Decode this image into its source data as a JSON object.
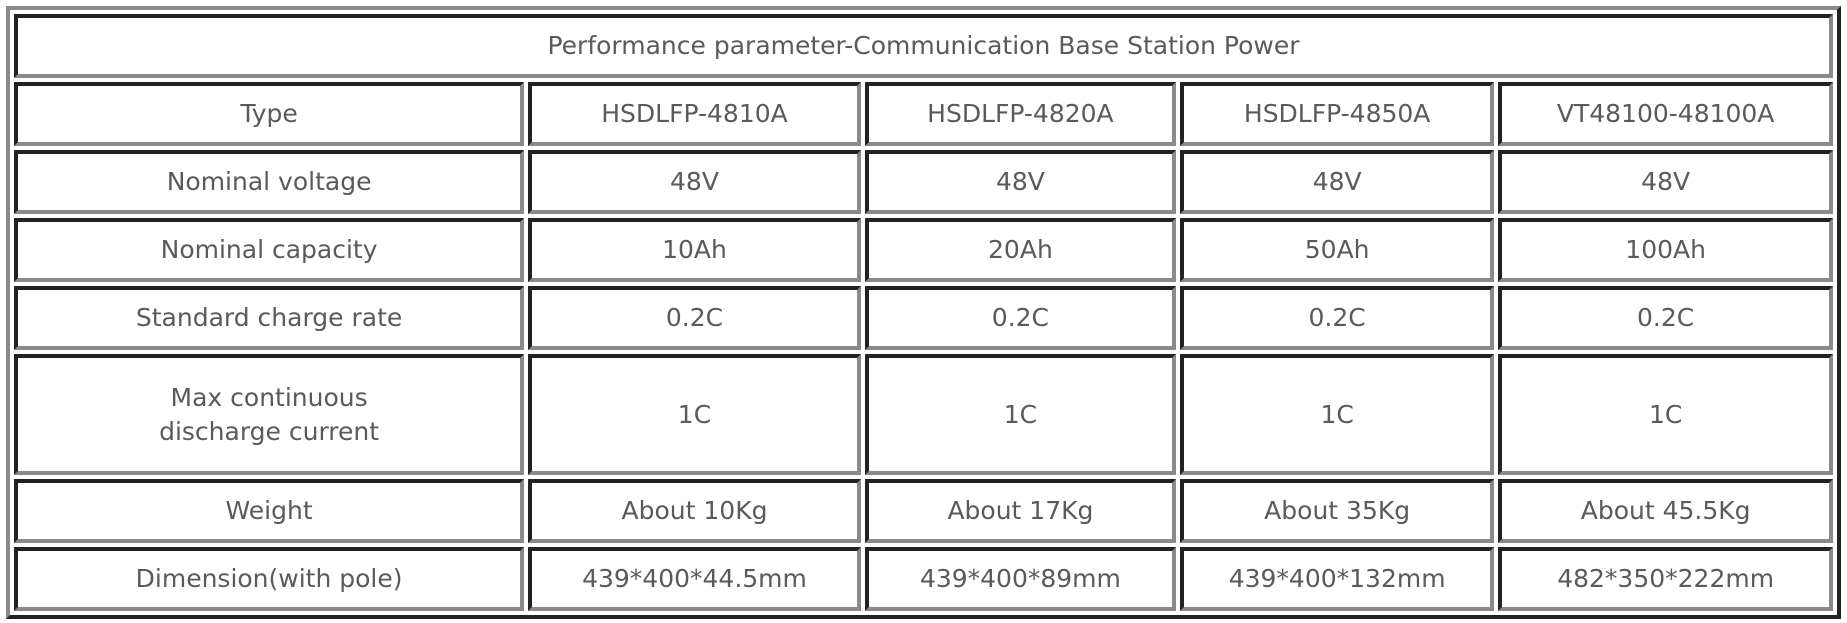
{
  "title": "Performance parameter-Communication Base Station Power",
  "columns": [
    "Type",
    "HSDLFP-4810A",
    "HSDLFP-4820A",
    "HSDLFP-4850A",
    "VT48100-48100A"
  ],
  "rows": [
    {
      "label": "Nominal voltage",
      "values": [
        "48V",
        "48V",
        "48V",
        "48V"
      ]
    },
    {
      "label": "Nominal capacity",
      "values": [
        "10Ah",
        "20Ah",
        "50Ah",
        "100Ah"
      ]
    },
    {
      "label": "Standard charge rate",
      "values": [
        "0.2C",
        "0.2C",
        "0.2C",
        "0.2C"
      ]
    },
    {
      "label": "Max continuous discharge current",
      "values": [
        "1C",
        "1C",
        "1C",
        "1C"
      ]
    },
    {
      "label": "Weight",
      "values": [
        "About 10Kg",
        "About 17Kg",
        "About 35Kg",
        "About 45.5Kg"
      ]
    },
    {
      "label": "Dimension(with pole)",
      "values": [
        "439*400*44.5mm",
        "439*400*89mm",
        "439*400*132mm",
        "482*350*222mm"
      ]
    }
  ]
}
